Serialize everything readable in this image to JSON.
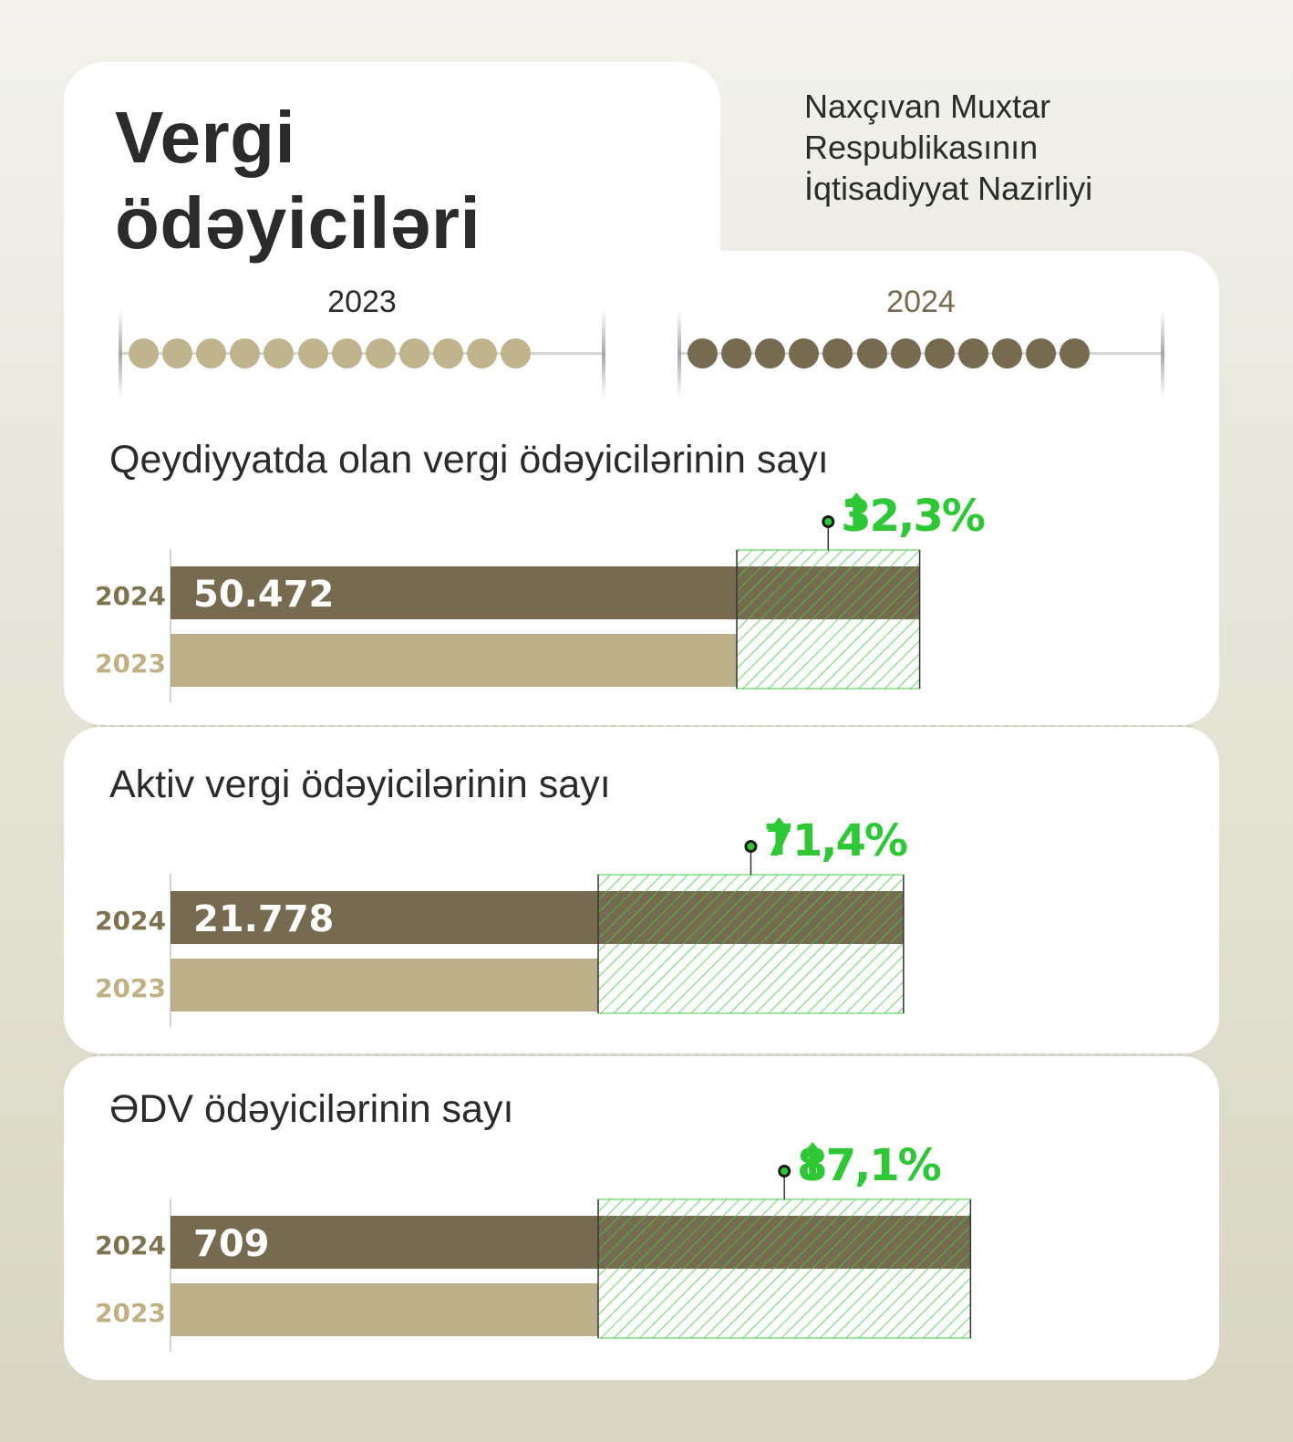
{
  "header": {
    "title_lines": [
      "Vergi",
      "ödəyiciləri"
    ],
    "ministry_lines": [
      "Naxçıvan Muxtar",
      "Respublikasının",
      "İqtisadiyyat Nazirliyi"
    ]
  },
  "year_scales": [
    {
      "label": "2023",
      "dots": 12,
      "color": "#c0b48e",
      "label_color": "#2b2b2b"
    },
    {
      "label": "2024",
      "dots": 12,
      "color": "#766a50",
      "label_color": "#766a50"
    }
  ],
  "colors": {
    "bar_2024": "#766a50",
    "bar_2023": "#bcb08a",
    "year_2024": "#7d7350",
    "year_2023": "#bfb184",
    "growth": "#2ec836",
    "hatch": "#3fcc45"
  },
  "chart_data": [
    {
      "type": "bar",
      "title": "Qeydiyyatda olan vergi ödəyicilərinin sayı",
      "categories": [
        "2024",
        "2023"
      ],
      "values": [
        50472,
        38150
      ],
      "value_label": "50.472",
      "growth_label": "32,3%",
      "growth_pct": 32.3
    },
    {
      "type": "bar",
      "title": "Aktiv vergi ödəyicilərinin sayı",
      "categories": [
        "2024",
        "2023"
      ],
      "values": [
        21778,
        12706
      ],
      "value_label": "21.778",
      "growth_label": "71,4%",
      "growth_pct": 71.4
    },
    {
      "type": "bar",
      "title": "ƏDV ödəyicilərinin sayı",
      "categories": [
        "2024",
        "2023"
      ],
      "values": [
        709,
        379
      ],
      "value_label": "709",
      "growth_label": "87,1%",
      "growth_pct": 87.1
    }
  ]
}
